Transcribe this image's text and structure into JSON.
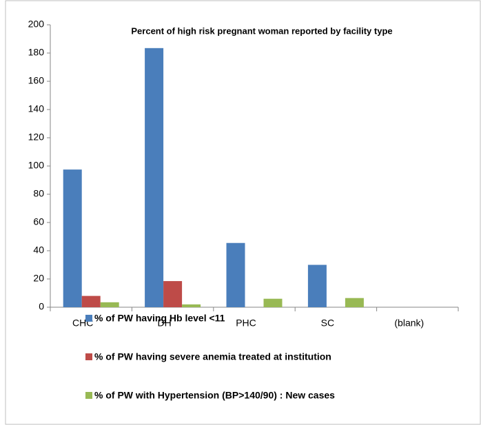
{
  "chart_data": {
    "type": "bar",
    "title": "Percent of high risk pregnant woman reported by facility type",
    "categories": [
      "CHC",
      "DH",
      "PHC",
      "SC",
      "(blank)"
    ],
    "series": [
      {
        "name": "% of PW having Hb level <11",
        "color": "#4a7ebb",
        "values": [
          97.5,
          183.5,
          45.5,
          30,
          null
        ]
      },
      {
        "name": "% of PW having severe anemia treated at institution",
        "color": "#be4b48",
        "values": [
          8,
          18.5,
          0,
          0,
          null
        ]
      },
      {
        "name": "% of PW with Hypertension (BP>140/90) : New cases",
        "color": "#98b954",
        "values": [
          3.5,
          2,
          6,
          6.5,
          null
        ]
      }
    ],
    "ylim": [
      0,
      200
    ],
    "yticks": [
      0,
      20,
      40,
      60,
      80,
      100,
      120,
      140,
      160,
      180,
      200
    ]
  }
}
